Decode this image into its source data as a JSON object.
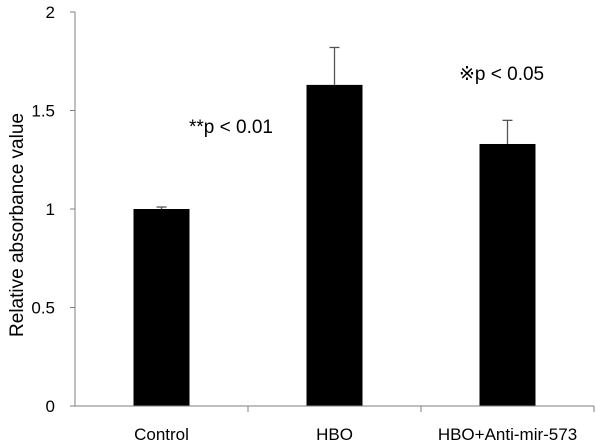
{
  "chart_data": {
    "type": "bar",
    "categories": [
      "Control",
      "HBO",
      "HBO+Anti-mir-573"
    ],
    "values": [
      1.0,
      1.63,
      1.33
    ],
    "error": [
      0.01,
      0.19,
      0.12
    ],
    "title": "",
    "xlabel": "",
    "ylabel": "Relative absorbance value",
    "ylim": [
      0,
      2
    ],
    "yticks": [
      "0",
      "0.5",
      "1",
      "1.5",
      "2"
    ],
    "grid": false,
    "bar_color": "#000000",
    "annotations": [
      {
        "text": "**p < 0.01",
        "near": "HBO",
        "position": "left"
      },
      {
        "text": "※p < 0.05",
        "near": "HBO+Anti-mir-573",
        "position": "above"
      }
    ]
  }
}
